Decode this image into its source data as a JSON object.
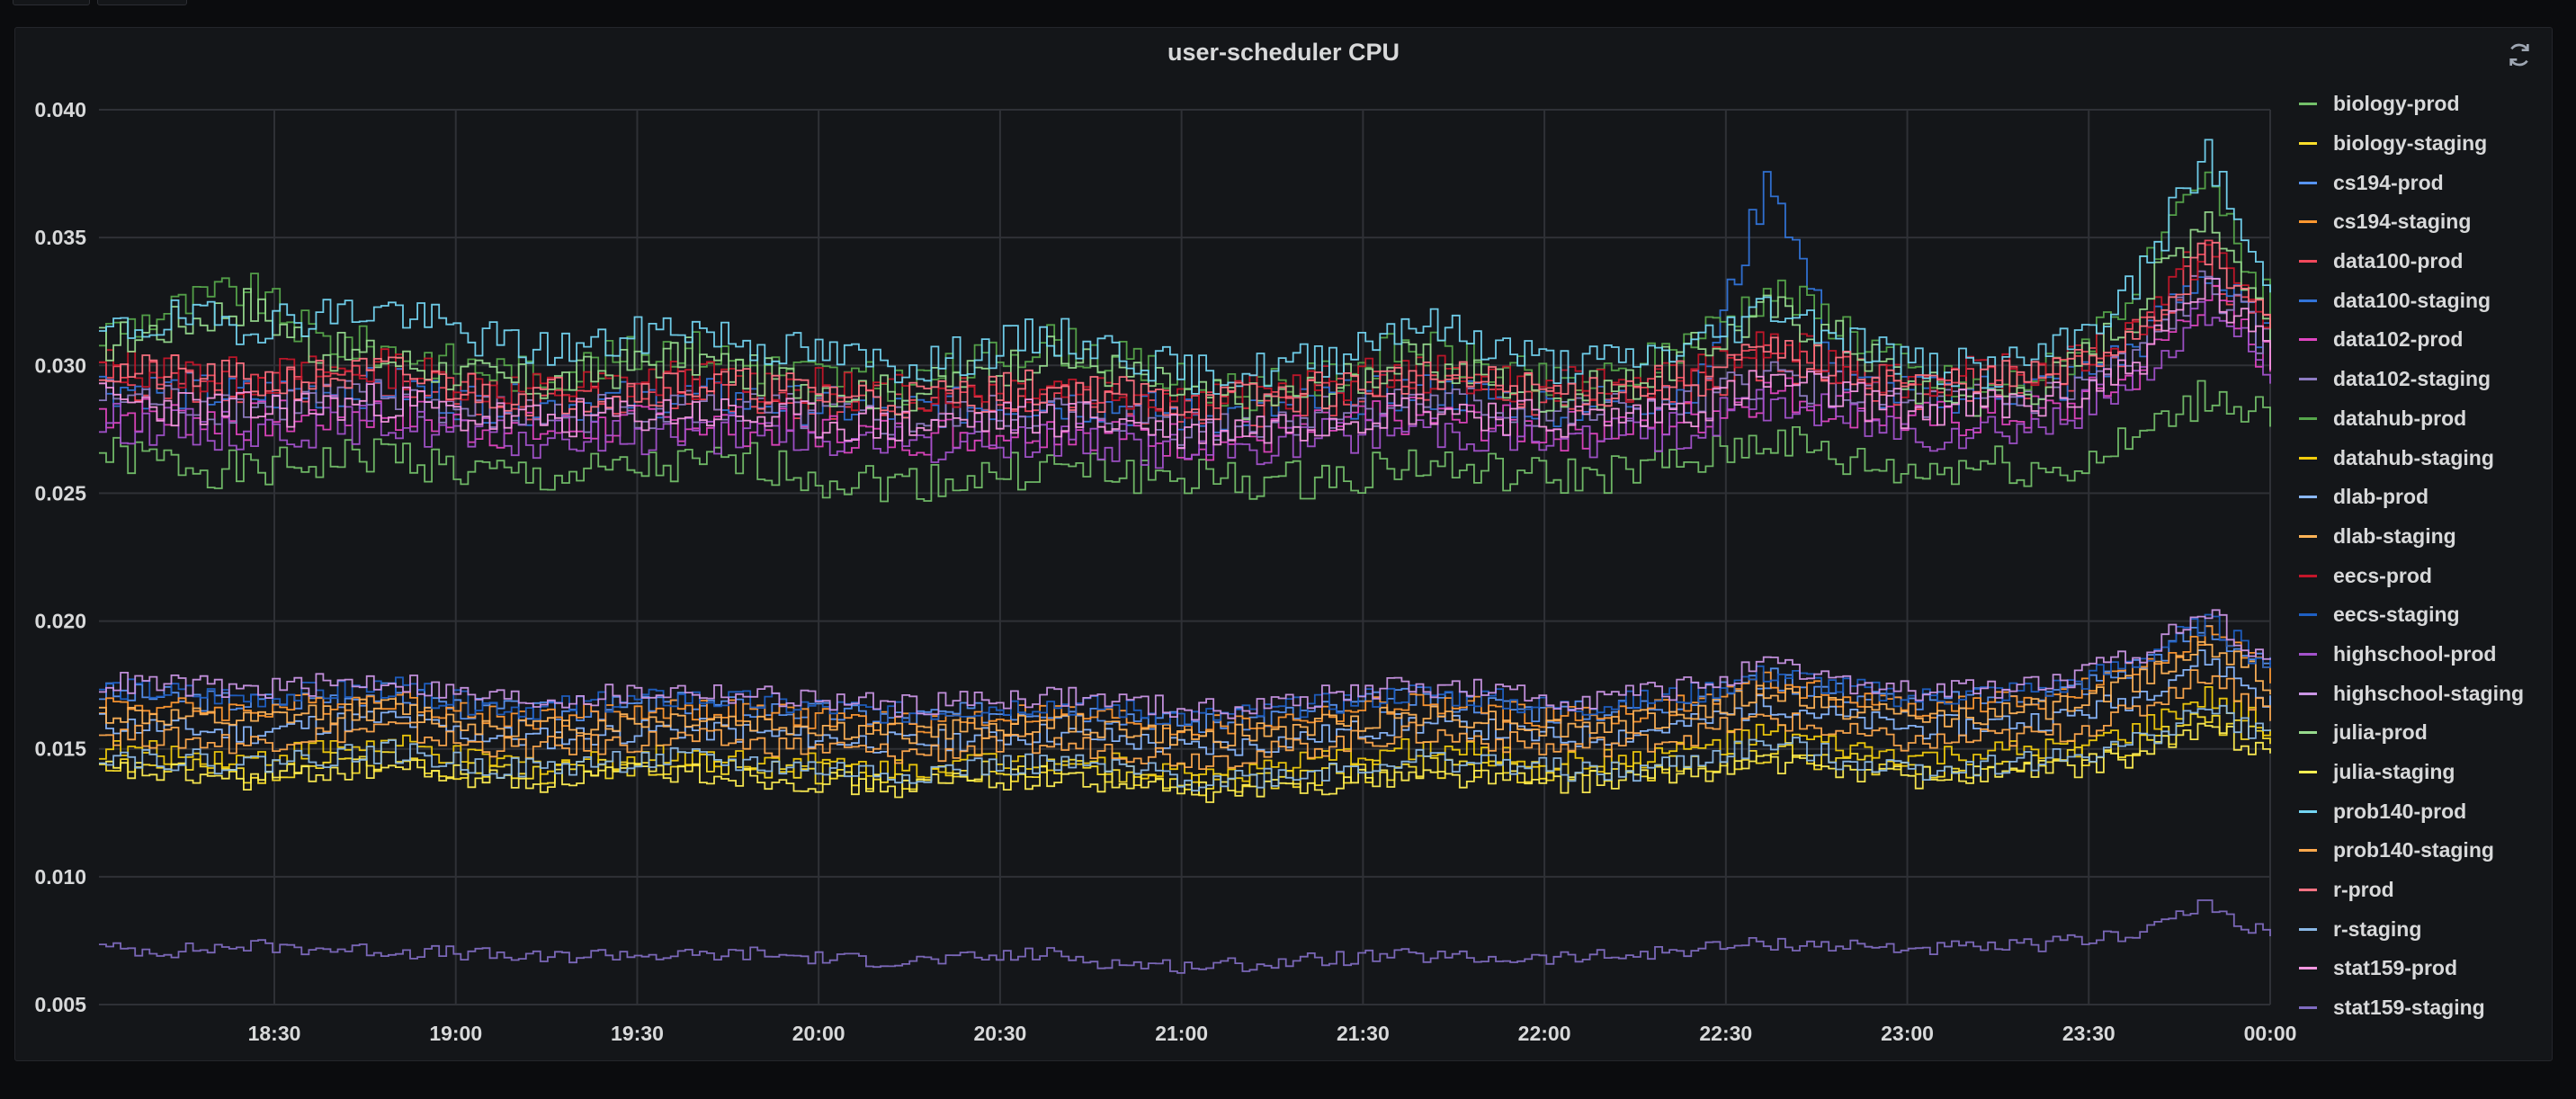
{
  "panel": {
    "title": "user-scheduler CPU"
  },
  "icons": {
    "refresh": "refresh-icon"
  },
  "chart_data": {
    "type": "line",
    "title": "user-scheduler CPU",
    "xlabel": "",
    "ylabel": "",
    "ylim": [
      0.005,
      0.04
    ],
    "yticks": [
      "0.040",
      "0.035",
      "0.030",
      "0.025",
      "0.020",
      "0.015",
      "0.010",
      "0.005"
    ],
    "ytick_values": [
      0.04,
      0.035,
      0.03,
      0.025,
      0.02,
      0.015,
      0.01,
      0.005
    ],
    "x_start": "18:01",
    "x_end": "00:00",
    "xticks": [
      "18:30",
      "19:00",
      "19:30",
      "20:00",
      "20:30",
      "21:00",
      "21:30",
      "22:00",
      "22:30",
      "23:00",
      "23:30",
      "00:00"
    ],
    "grid": true,
    "legend_position": "right",
    "line_style": "step",
    "x": [
      "18:01",
      "18:13",
      "18:25",
      "18:37",
      "18:49",
      "19:01",
      "19:13",
      "19:25",
      "19:37",
      "19:49",
      "20:01",
      "20:13",
      "20:25",
      "20:37",
      "20:49",
      "21:01",
      "21:13",
      "21:25",
      "21:37",
      "21:49",
      "22:01",
      "22:13",
      "22:25",
      "22:37",
      "22:49",
      "23:01",
      "23:13",
      "23:25",
      "23:37",
      "23:49",
      "00:00"
    ],
    "series": [
      {
        "name": "biology-prod",
        "color": "#73bf69",
        "values": [
          0.0265,
          0.0262,
          0.0258,
          0.0262,
          0.0266,
          0.0258,
          0.0256,
          0.0258,
          0.026,
          0.0262,
          0.0256,
          0.0254,
          0.0256,
          0.026,
          0.0258,
          0.0256,
          0.0254,
          0.0256,
          0.0262,
          0.0258,
          0.0256,
          0.0258,
          0.0262,
          0.0272,
          0.0262,
          0.0258,
          0.0262,
          0.0258,
          0.027,
          0.0288,
          0.0282
        ]
      },
      {
        "name": "biology-staging",
        "color": "#fade2a",
        "values": [
          0.0145,
          0.0142,
          0.014,
          0.0144,
          0.0146,
          0.0142,
          0.014,
          0.0143,
          0.0144,
          0.0142,
          0.014,
          0.0138,
          0.0141,
          0.0142,
          0.014,
          0.0136,
          0.0137,
          0.014,
          0.0143,
          0.0142,
          0.014,
          0.0141,
          0.0144,
          0.0148,
          0.0145,
          0.0142,
          0.0143,
          0.0145,
          0.015,
          0.0162,
          0.0152
        ]
      },
      {
        "name": "cs194-prod",
        "color": "#5794f2",
        "values": [
          0.0172,
          0.017,
          0.0168,
          0.017,
          0.0172,
          0.0166,
          0.0164,
          0.0166,
          0.0168,
          0.0166,
          0.0164,
          0.0162,
          0.0164,
          0.0166,
          0.0164,
          0.016,
          0.0162,
          0.0166,
          0.017,
          0.0168,
          0.0164,
          0.0166,
          0.017,
          0.0178,
          0.0172,
          0.0168,
          0.017,
          0.0172,
          0.0182,
          0.0198,
          0.018
        ]
      },
      {
        "name": "cs194-staging",
        "color": "#ff9830",
        "values": [
          0.0168,
          0.0166,
          0.0165,
          0.0168,
          0.017,
          0.0164,
          0.0162,
          0.0164,
          0.0166,
          0.0164,
          0.0162,
          0.016,
          0.0162,
          0.0164,
          0.0162,
          0.0158,
          0.016,
          0.0164,
          0.0168,
          0.0166,
          0.0162,
          0.0164,
          0.0168,
          0.0176,
          0.017,
          0.0166,
          0.0168,
          0.017,
          0.018,
          0.0196,
          0.0178
        ]
      },
      {
        "name": "data100-prod",
        "color": "#f2495c",
        "values": [
          0.0295,
          0.0293,
          0.029,
          0.0292,
          0.0294,
          0.0288,
          0.0285,
          0.0287,
          0.029,
          0.0288,
          0.0286,
          0.0284,
          0.0286,
          0.0288,
          0.0286,
          0.0282,
          0.0284,
          0.0288,
          0.0292,
          0.029,
          0.0286,
          0.0288,
          0.0292,
          0.0302,
          0.0296,
          0.029,
          0.0292,
          0.0294,
          0.031,
          0.0342,
          0.0312
        ]
      },
      {
        "name": "data100-staging",
        "color": "#3274d9",
        "values": [
          0.0292,
          0.029,
          0.0288,
          0.029,
          0.0292,
          0.0286,
          0.0284,
          0.0286,
          0.0288,
          0.0286,
          0.0284,
          0.0282,
          0.0284,
          0.0286,
          0.0284,
          0.028,
          0.0282,
          0.0286,
          0.029,
          0.0288,
          0.0284,
          0.0286,
          0.029,
          0.0376,
          0.0292,
          0.0288,
          0.029,
          0.0292,
          0.0306,
          0.0338,
          0.0308
        ]
      },
      {
        "name": "data102-prod",
        "color": "#e045c0",
        "values": [
          0.0282,
          0.028,
          0.0278,
          0.028,
          0.0282,
          0.0276,
          0.0274,
          0.0276,
          0.0278,
          0.0276,
          0.0274,
          0.0272,
          0.0274,
          0.0276,
          0.0274,
          0.027,
          0.0272,
          0.0276,
          0.028,
          0.0278,
          0.0274,
          0.0276,
          0.028,
          0.029,
          0.0284,
          0.0278,
          0.028,
          0.0282,
          0.0296,
          0.0328,
          0.03
        ]
      },
      {
        "name": "data102-staging",
        "color": "#8e7cc3",
        "values": [
          0.0288,
          0.0286,
          0.0284,
          0.0286,
          0.0288,
          0.0282,
          0.028,
          0.0282,
          0.0284,
          0.0282,
          0.028,
          0.0278,
          0.028,
          0.0282,
          0.028,
          0.0276,
          0.0278,
          0.0282,
          0.0286,
          0.0284,
          0.028,
          0.0282,
          0.0286,
          0.0296,
          0.029,
          0.0284,
          0.0286,
          0.0288,
          0.0302,
          0.0334,
          0.0304
        ]
      },
      {
        "name": "datahub-prod",
        "color": "#56a64b",
        "values": [
          0.0312,
          0.0322,
          0.033,
          0.031,
          0.0306,
          0.03,
          0.0296,
          0.0302,
          0.0308,
          0.03,
          0.0296,
          0.0292,
          0.03,
          0.031,
          0.0302,
          0.0292,
          0.029,
          0.0296,
          0.0308,
          0.03,
          0.0292,
          0.0296,
          0.0312,
          0.033,
          0.0316,
          0.0296,
          0.029,
          0.03,
          0.033,
          0.0372,
          0.032
        ]
      },
      {
        "name": "datahub-staging",
        "color": "#f2cc0c",
        "values": [
          0.015,
          0.0148,
          0.0146,
          0.015,
          0.0152,
          0.0146,
          0.0144,
          0.0146,
          0.0148,
          0.0146,
          0.0144,
          0.0142,
          0.0145,
          0.0146,
          0.0144,
          0.014,
          0.0142,
          0.0146,
          0.015,
          0.0148,
          0.0144,
          0.0146,
          0.015,
          0.0156,
          0.015,
          0.0146,
          0.0148,
          0.015,
          0.0156,
          0.017,
          0.0158
        ]
      },
      {
        "name": "dlab-prod",
        "color": "#8ab8ff",
        "values": [
          0.016,
          0.0158,
          0.0156,
          0.016,
          0.0162,
          0.0156,
          0.0154,
          0.0156,
          0.0158,
          0.0156,
          0.0154,
          0.0152,
          0.0154,
          0.0156,
          0.0154,
          0.015,
          0.0152,
          0.0156,
          0.016,
          0.0158,
          0.0154,
          0.0156,
          0.016,
          0.0168,
          0.0162,
          0.0158,
          0.016,
          0.0162,
          0.017,
          0.0186,
          0.0168
        ]
      },
      {
        "name": "dlab-staging",
        "color": "#ffb357",
        "values": [
          0.0164,
          0.0162,
          0.016,
          0.0164,
          0.0166,
          0.016,
          0.0158,
          0.016,
          0.0162,
          0.016,
          0.0158,
          0.0156,
          0.0158,
          0.016,
          0.0158,
          0.0154,
          0.0156,
          0.016,
          0.0164,
          0.0162,
          0.0158,
          0.016,
          0.0164,
          0.0172,
          0.0166,
          0.0162,
          0.0164,
          0.0166,
          0.0176,
          0.0192,
          0.0174
        ]
      },
      {
        "name": "eecs-prod",
        "color": "#c4162a",
        "values": [
          0.03,
          0.0298,
          0.0295,
          0.0297,
          0.0299,
          0.0293,
          0.029,
          0.0292,
          0.0295,
          0.0293,
          0.0291,
          0.0289,
          0.0291,
          0.0293,
          0.0291,
          0.0287,
          0.0289,
          0.0293,
          0.0297,
          0.0295,
          0.0291,
          0.0293,
          0.0297,
          0.0308,
          0.03,
          0.0294,
          0.0296,
          0.0298,
          0.0314,
          0.0346,
          0.0316
        ]
      },
      {
        "name": "eecs-staging",
        "color": "#1f60c4",
        "values": [
          0.0174,
          0.0172,
          0.017,
          0.0172,
          0.0174,
          0.0168,
          0.0166,
          0.0168,
          0.017,
          0.0168,
          0.0166,
          0.0164,
          0.0166,
          0.0168,
          0.0166,
          0.0162,
          0.0164,
          0.0168,
          0.0172,
          0.017,
          0.0166,
          0.0168,
          0.0172,
          0.018,
          0.0174,
          0.017,
          0.0172,
          0.0174,
          0.0184,
          0.02,
          0.0182
        ]
      },
      {
        "name": "highschool-prod",
        "color": "#a352cc",
        "values": [
          0.0278,
          0.0276,
          0.0274,
          0.0276,
          0.0278,
          0.0272,
          0.027,
          0.0272,
          0.0274,
          0.0272,
          0.027,
          0.0268,
          0.027,
          0.0272,
          0.027,
          0.0266,
          0.0268,
          0.0272,
          0.0276,
          0.0274,
          0.027,
          0.0272,
          0.0276,
          0.0286,
          0.028,
          0.0274,
          0.0276,
          0.0278,
          0.0292,
          0.0324,
          0.0296
        ]
      },
      {
        "name": "highschool-staging",
        "color": "#ca95e5",
        "values": [
          0.0176,
          0.0175,
          0.0173,
          0.0175,
          0.0177,
          0.0171,
          0.0169,
          0.0171,
          0.0173,
          0.0171,
          0.0169,
          0.0167,
          0.0169,
          0.0171,
          0.0169,
          0.0165,
          0.0167,
          0.0171,
          0.0175,
          0.0173,
          0.0169,
          0.0171,
          0.0175,
          0.0182,
          0.0176,
          0.0172,
          0.0174,
          0.0176,
          0.0186,
          0.0204,
          0.0184
        ]
      },
      {
        "name": "julia-prod",
        "color": "#96d98d",
        "values": [
          0.0308,
          0.0316,
          0.0324,
          0.0306,
          0.0302,
          0.0296,
          0.0292,
          0.0298,
          0.0304,
          0.0296,
          0.0292,
          0.0288,
          0.0296,
          0.0304,
          0.0298,
          0.0288,
          0.0286,
          0.0292,
          0.0302,
          0.0296,
          0.0288,
          0.0292,
          0.0306,
          0.0322,
          0.031,
          0.0292,
          0.0286,
          0.0296,
          0.032,
          0.0362,
          0.0314
        ]
      },
      {
        "name": "julia-staging",
        "color": "#ffee52",
        "values": [
          0.0142,
          0.014,
          0.0138,
          0.0141,
          0.0143,
          0.0139,
          0.0137,
          0.014,
          0.0141,
          0.0139,
          0.0137,
          0.0135,
          0.0138,
          0.0139,
          0.0137,
          0.0133,
          0.0134,
          0.0137,
          0.014,
          0.0139,
          0.0137,
          0.0138,
          0.0141,
          0.0145,
          0.0142,
          0.0139,
          0.014,
          0.0142,
          0.0147,
          0.0158,
          0.0149
        ]
      },
      {
        "name": "prob140-prod",
        "color": "#73d5f2",
        "values": [
          0.0312,
          0.0318,
          0.0316,
          0.032,
          0.0322,
          0.0312,
          0.0306,
          0.0308,
          0.0316,
          0.0308,
          0.0304,
          0.03,
          0.0304,
          0.0312,
          0.0306,
          0.0296,
          0.0298,
          0.0304,
          0.0318,
          0.031,
          0.03,
          0.0302,
          0.0308,
          0.0324,
          0.0312,
          0.03,
          0.0298,
          0.0306,
          0.033,
          0.0384,
          0.0324
        ]
      },
      {
        "name": "prob140-staging",
        "color": "#ffa94d",
        "values": [
          0.0156,
          0.0154,
          0.0152,
          0.0156,
          0.0158,
          0.0152,
          0.015,
          0.0152,
          0.0154,
          0.0152,
          0.015,
          0.0148,
          0.015,
          0.0152,
          0.015,
          0.0146,
          0.0148,
          0.0152,
          0.0156,
          0.0154,
          0.015,
          0.0152,
          0.0156,
          0.0162,
          0.0156,
          0.0152,
          0.0154,
          0.0156,
          0.0164,
          0.018,
          0.0164
        ]
      },
      {
        "name": "r-prod",
        "color": "#ff7383",
        "values": [
          0.0298,
          0.0296,
          0.0293,
          0.0295,
          0.0297,
          0.0291,
          0.0288,
          0.029,
          0.0293,
          0.0291,
          0.0289,
          0.0287,
          0.0289,
          0.0291,
          0.0289,
          0.0285,
          0.0287,
          0.0291,
          0.0295,
          0.0293,
          0.0289,
          0.0291,
          0.0295,
          0.0305,
          0.0298,
          0.0292,
          0.0294,
          0.0296,
          0.0312,
          0.0344,
          0.0314
        ]
      },
      {
        "name": "r-staging",
        "color": "#8ab8e6",
        "values": [
          0.0148,
          0.0146,
          0.0144,
          0.0147,
          0.0149,
          0.0144,
          0.0142,
          0.0145,
          0.0146,
          0.0144,
          0.0142,
          0.014,
          0.0143,
          0.0144,
          0.0142,
          0.0138,
          0.0139,
          0.0142,
          0.0146,
          0.0145,
          0.0142,
          0.014,
          0.0146,
          0.0152,
          0.0146,
          0.0142,
          0.0144,
          0.0146,
          0.0152,
          0.0166,
          0.0154
        ]
      },
      {
        "name": "stat159-prod",
        "color": "#f497e0",
        "values": [
          0.0286,
          0.0284,
          0.0282,
          0.0284,
          0.0286,
          0.028,
          0.0278,
          0.028,
          0.0282,
          0.028,
          0.0278,
          0.0276,
          0.0278,
          0.028,
          0.0278,
          0.0274,
          0.0276,
          0.028,
          0.0284,
          0.0282,
          0.0278,
          0.028,
          0.0284,
          0.0294,
          0.0288,
          0.0282,
          0.0284,
          0.0286,
          0.03,
          0.0332,
          0.0302
        ]
      },
      {
        "name": "stat159-staging",
        "color": "#7f6bc0",
        "values": [
          0.0072,
          0.0071,
          0.0073,
          0.0072,
          0.0071,
          0.007,
          0.0068,
          0.007,
          0.0069,
          0.007,
          0.0068,
          0.0067,
          0.0068,
          0.007,
          0.0066,
          0.0065,
          0.0066,
          0.0068,
          0.0069,
          0.0068,
          0.0068,
          0.0069,
          0.0072,
          0.0074,
          0.0073,
          0.0072,
          0.0072,
          0.0074,
          0.0078,
          0.0089,
          0.0076
        ]
      }
    ]
  }
}
